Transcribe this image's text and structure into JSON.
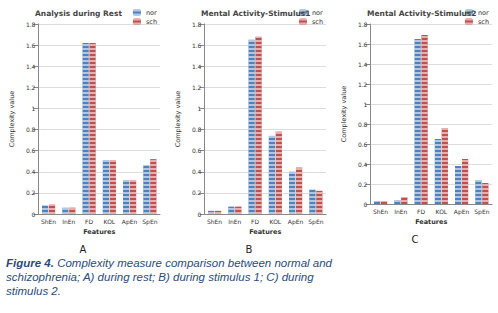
{
  "caption_label": "Figure 4.",
  "caption": "Complexity measure comparison between normal and schizophrenia; A) during rest; B) during stimulus 1; C) during stimulus 2.",
  "chart_data": [
    {
      "type": "bar",
      "title": "Analysis during Rest",
      "annotations": [
        "A"
      ],
      "x_label": "Features",
      "y_label": "Complexity value",
      "categories": [
        "ShEn",
        "InEn",
        "FD",
        "KOL",
        "ApEn",
        "SpEn"
      ],
      "series": [
        {
          "name": "nor",
          "color": "#4f81bd",
          "values": [
            0.08,
            0.06,
            1.62,
            0.51,
            0.32,
            0.46
          ]
        },
        {
          "name": "sch",
          "color": "#c0504d",
          "values": [
            0.09,
            0.06,
            1.62,
            0.51,
            0.32,
            0.52
          ]
        }
      ],
      "ylim": [
        0,
        1.8
      ],
      "yticks": [
        0,
        0.2,
        0.4,
        0.6,
        0.8,
        1,
        1.2,
        1.4,
        1.6,
        1.8
      ],
      "grid": true,
      "legend": "top-right"
    },
    {
      "type": "bar",
      "title": "Mental Activity-Stimulus1",
      "annotations": [
        "B"
      ],
      "x_label": "Features",
      "y_label": "Complexity value",
      "categories": [
        "ShEn",
        "InEn",
        "FD",
        "KOL",
        "ApEn",
        "SpEn"
      ],
      "series": [
        {
          "name": "nor",
          "color": "#4f81bd",
          "values": [
            0.03,
            0.07,
            1.65,
            0.74,
            0.4,
            0.23
          ]
        },
        {
          "name": "sch",
          "color": "#c0504d",
          "values": [
            0.03,
            0.07,
            1.68,
            0.78,
            0.44,
            0.22
          ]
        }
      ],
      "ylim": [
        0,
        1.8
      ],
      "yticks": [
        0,
        0.2,
        0.4,
        0.6,
        0.8,
        1,
        1.2,
        1.4,
        1.6,
        1.8
      ],
      "grid": true,
      "legend": "top-right"
    },
    {
      "type": "bar",
      "title": "Mental Activity-Stimulus2",
      "annotations": [
        "C"
      ],
      "x_label": "Features",
      "y_label": "Complexity value",
      "categories": [
        "ShEn",
        "InEn",
        "FD",
        "KOL",
        "ApEn",
        "SpEn"
      ],
      "series": [
        {
          "name": "nor",
          "color": "#4f81bd",
          "values": [
            0.03,
            0.04,
            1.65,
            0.65,
            0.38,
            0.24
          ]
        },
        {
          "name": "sch",
          "color": "#c0504d",
          "values": [
            0.03,
            0.07,
            1.69,
            0.76,
            0.45,
            0.21
          ]
        }
      ],
      "ylim": [
        0,
        1.8
      ],
      "yticks": [
        0,
        0.2,
        0.4,
        0.6,
        0.8,
        1,
        1.2,
        1.4,
        1.6,
        1.8
      ],
      "grid": true,
      "legend": "top-right"
    }
  ]
}
